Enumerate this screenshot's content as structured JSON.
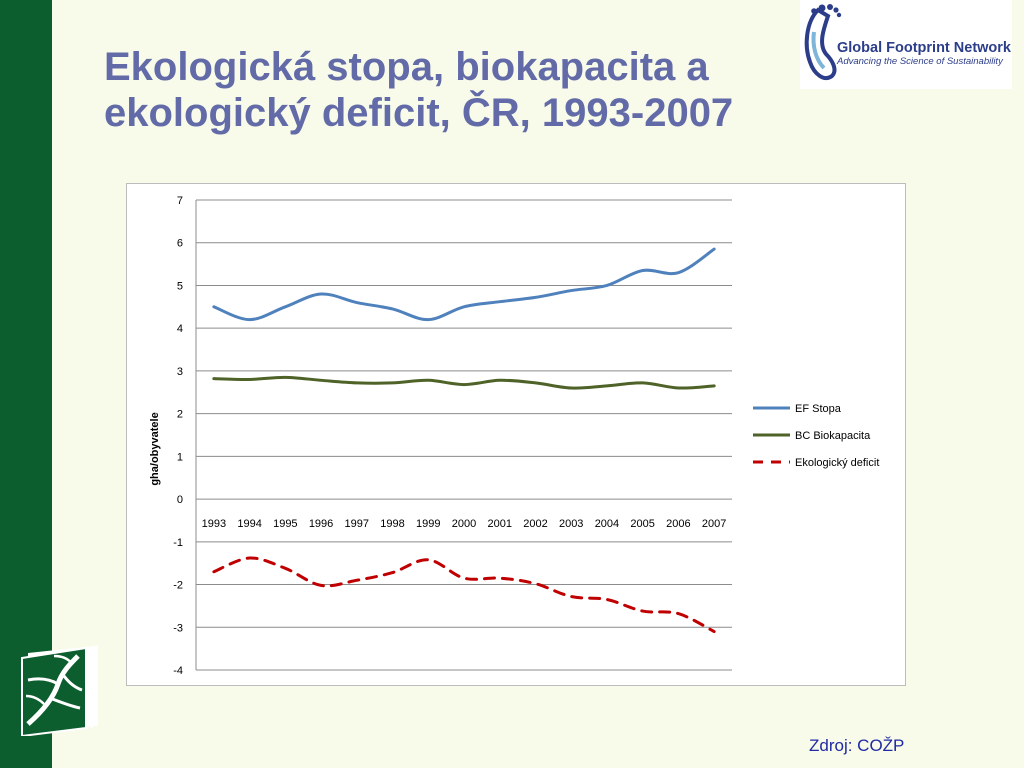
{
  "slide": {
    "title": "Ekologická stopa, biokapacita a ekologický deficit, ČR, 1993-2007",
    "source": "Zdroj: COŽP"
  },
  "logo": {
    "name": "Global Footprint Network",
    "tagline": "Advancing the Science of Sustainability",
    "icon": "footprint-icon"
  },
  "colors": {
    "title": "#626aa8",
    "sidebar": "#0c5e2f",
    "background": "#f8fbe9",
    "ef_series": "#4f81bd",
    "bc_series": "#4f6228",
    "deficit_series": "#c00000"
  },
  "chart_data": {
    "type": "line",
    "title": "",
    "xlabel": "",
    "ylabel": "gha/obyvatele",
    "ylim": [
      -4,
      7
    ],
    "yticks": [
      7,
      6,
      5,
      4,
      3,
      2,
      1,
      0,
      -1,
      -2,
      -3,
      -4
    ],
    "grid": true,
    "legend": "right",
    "x": [
      "1993",
      "1994",
      "1995",
      "1996",
      "1997",
      "1998",
      "1999",
      "2000",
      "2001",
      "2002",
      "2003",
      "2004",
      "2005",
      "2006",
      "2007"
    ],
    "series": [
      {
        "name": "EF Stopa",
        "color": "#4f81bd",
        "dash": "solid",
        "values": [
          4.5,
          4.2,
          4.5,
          4.8,
          4.6,
          4.45,
          4.2,
          4.5,
          4.62,
          4.72,
          4.88,
          5.0,
          5.35,
          5.3,
          5.85
        ]
      },
      {
        "name": "BC Biokapacita",
        "color": "#4f6228",
        "dash": "solid",
        "values": [
          2.82,
          2.8,
          2.85,
          2.78,
          2.72,
          2.72,
          2.78,
          2.68,
          2.78,
          2.72,
          2.6,
          2.65,
          2.72,
          2.6,
          2.65
        ]
      },
      {
        "name": "Ekologický deficit",
        "color": "#c00000",
        "dash": "dashed",
        "values": [
          -1.7,
          -1.38,
          -1.62,
          -2.02,
          -1.9,
          -1.72,
          -1.42,
          -1.85,
          -1.85,
          -1.98,
          -2.28,
          -2.35,
          -2.62,
          -2.68,
          -3.1
        ]
      }
    ]
  }
}
